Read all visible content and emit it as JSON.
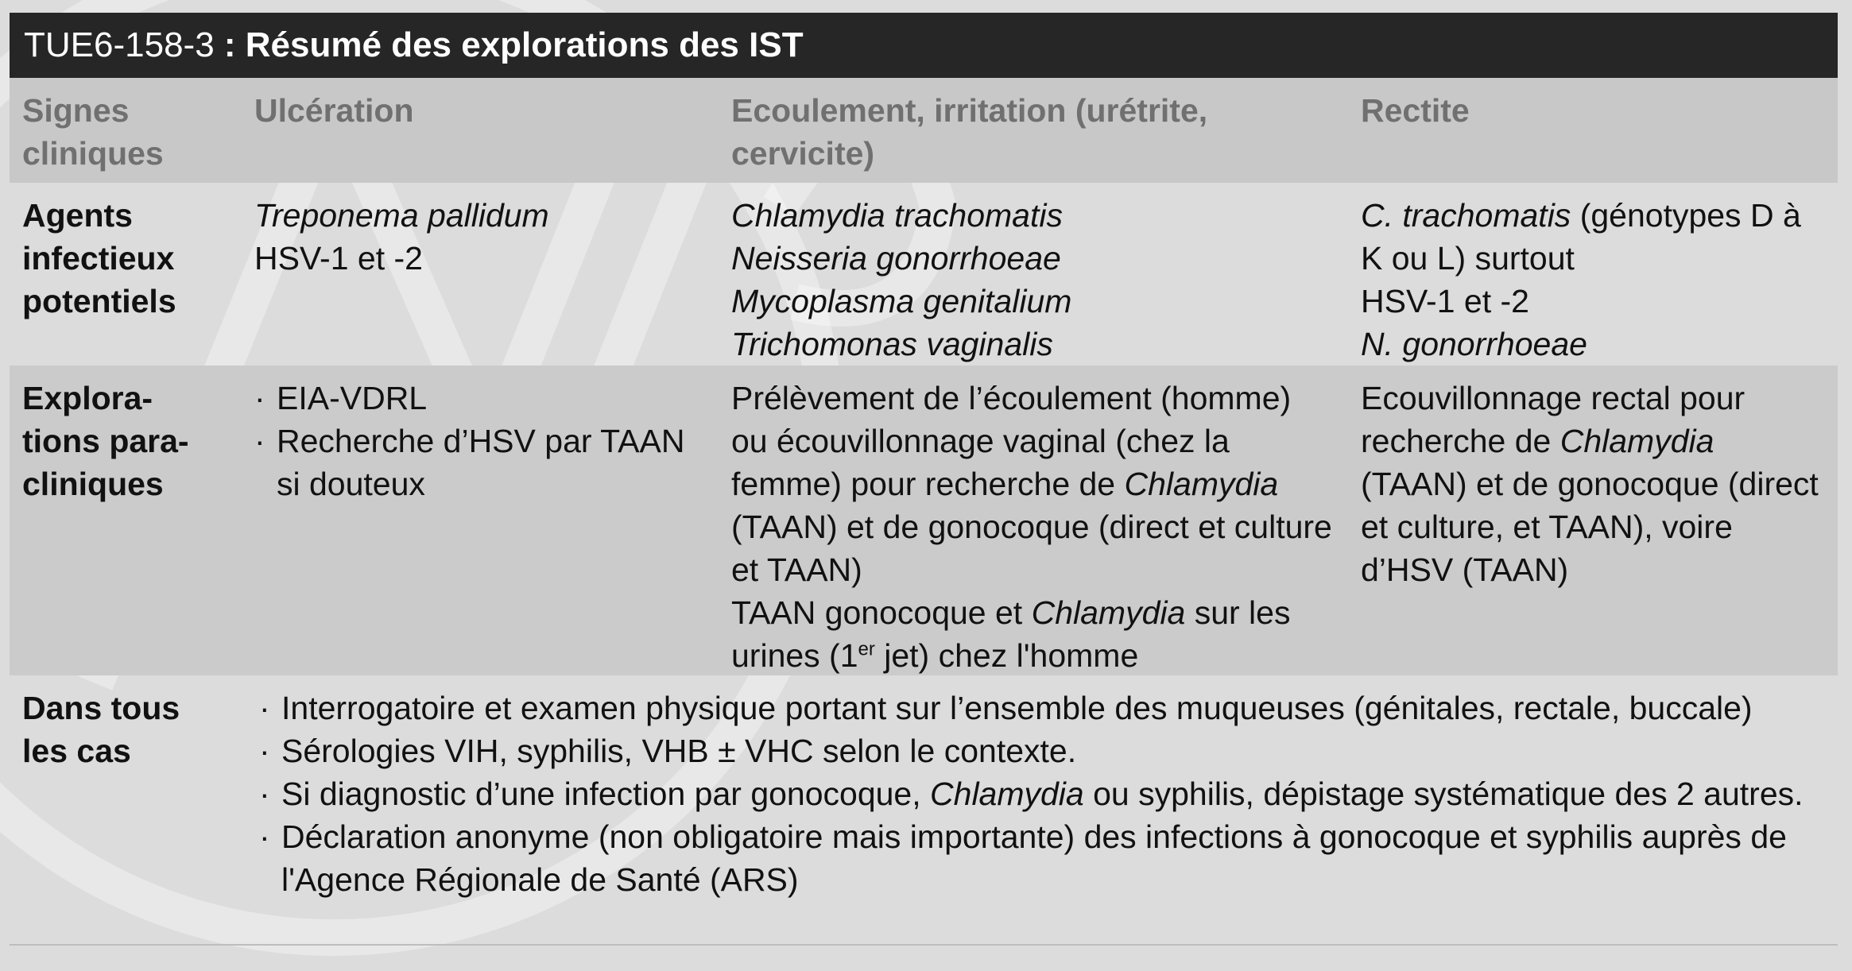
{
  "table": {
    "code": "TUE6-158-3",
    "separator": " : ",
    "title": "Résumé des explorations des IST",
    "headers": {
      "col1": "Signes cliniques",
      "col2": "Ulcération",
      "col3": "Ecoulement, irritation (urétrite, cervicite)",
      "col4": "Rectite"
    },
    "row1": {
      "label": "Agents infectieux potentiels",
      "ulceration": [
        "Treponema pallidum",
        "HSV-1 et -2"
      ],
      "ecoulement": [
        "Chlamydia trachomatis",
        "Neisseria gonorrhoeae",
        "Mycoplasma genitalium",
        "Trichomonas vaginalis"
      ],
      "rectite": {
        "part1_italic": "C. trachomatis",
        "part1_rest": " (génotypes D à K ou L) surtout",
        "line2": "HSV-1 et -2",
        "line3_italic": "N. gonorrhoeae"
      }
    },
    "row2": {
      "label": "Explorations para-cliniques",
      "ulceration": [
        "EIA-VDRL",
        "Recherche d’HSV par TAAN si douteux"
      ],
      "ecoulement": {
        "p1_a": "Prélèvement de l’écoulement (homme) ou écouvillonnage vaginal (chez la femme) pour recherche de ",
        "p1_italic": "Chlamydia",
        "p1_b": " (TAAN) et de gonocoque (direct et culture et TAAN)",
        "p2_a": "TAAN gonocoque et ",
        "p2_italic": "Chlamydia",
        "p2_b": " sur les urines (1",
        "p2_sup": "er",
        "p2_c": " jet) chez l'homme"
      },
      "rectite": {
        "a": "Ecouvillonnage rectal pour recherche de ",
        "italic": "Chlamydia",
        "b": " (TAAN) et de gonocoque (direct et culture, et TAAN), voire d’HSV (TAAN)"
      }
    },
    "row3": {
      "label": "Dans tous les cas",
      "bullet_symbol": "·",
      "b1": "Interrogatoire et examen physique portant sur l’ensemble des muqueuses (génitales, rectale, buccale)",
      "b2": "Sérologies VIH, syphilis, VHB ± VHC selon le contexte.",
      "b3_a": "Si diagnostic d’une infection par gonocoque, ",
      "b3_italic": "Chlamydia",
      "b3_b": " ou syphilis, dépistage systématique des 2 autres.",
      "b4": "Déclaration anonyme (non obligatoire mais importante) des infections à gonocoque et syphilis auprès de l'Agence Régionale de Santé (ARS)"
    }
  }
}
